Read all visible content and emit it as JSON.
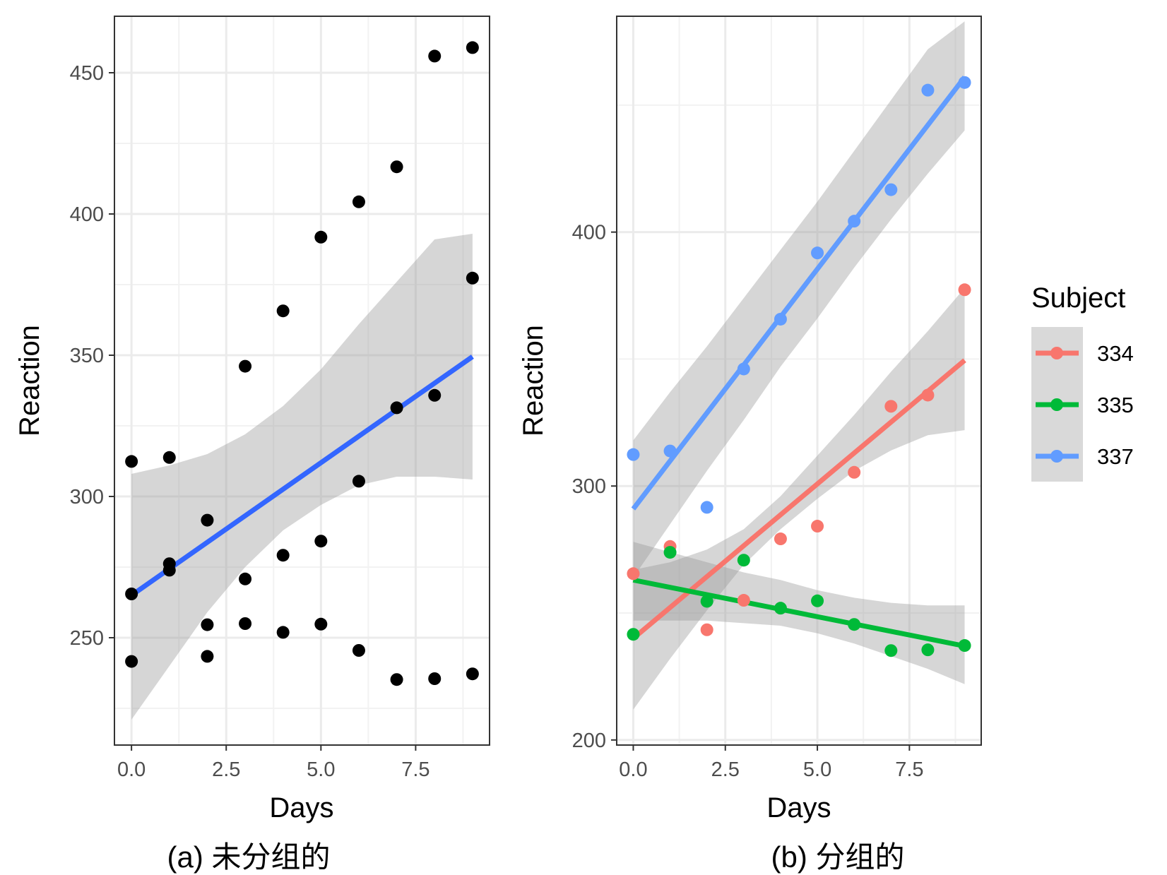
{
  "chart_data": [
    {
      "type": "scatter",
      "panel": "a",
      "caption": "(a) 未分组的",
      "xlabel": "Days",
      "ylabel": "Reaction",
      "xlim": [
        -0.45,
        9.45
      ],
      "ylim": [
        212,
        470
      ],
      "xticks": [
        0,
        2.5,
        5,
        7.5
      ],
      "xtick_labels": [
        "0.0",
        "2.5",
        "5.0",
        "7.5"
      ],
      "yticks": [
        250,
        300,
        350,
        400,
        450
      ],
      "ytick_labels": [
        "250",
        "300",
        "350",
        "400",
        "450"
      ],
      "grid": true,
      "points": [
        {
          "x": 0,
          "y": 312.4
        },
        {
          "x": 1,
          "y": 313.8
        },
        {
          "x": 2,
          "y": 291.6
        },
        {
          "x": 3,
          "y": 346.1
        },
        {
          "x": 4,
          "y": 365.7
        },
        {
          "x": 5,
          "y": 391.8
        },
        {
          "x": 6,
          "y": 404.3
        },
        {
          "x": 7,
          "y": 416.7
        },
        {
          "x": 8,
          "y": 455.9
        },
        {
          "x": 9,
          "y": 458.9
        },
        {
          "x": 0,
          "y": 265.5
        },
        {
          "x": 1,
          "y": 276.2
        },
        {
          "x": 2,
          "y": 254.6
        },
        {
          "x": 3,
          "y": 255.0
        },
        {
          "x": 4,
          "y": 251.9
        },
        {
          "x": 5,
          "y": 254.8
        },
        {
          "x": 6,
          "y": 245.5
        },
        {
          "x": 7,
          "y": 235.2
        },
        {
          "x": 8,
          "y": 235.5
        },
        {
          "x": 9,
          "y": 237.2
        },
        {
          "x": 0,
          "y": 241.6
        },
        {
          "x": 1,
          "y": 273.9
        },
        {
          "x": 2,
          "y": 243.4
        },
        {
          "x": 3,
          "y": 270.8
        },
        {
          "x": 4,
          "y": 279.2
        },
        {
          "x": 5,
          "y": 284.2
        },
        {
          "x": 6,
          "y": 305.4
        },
        {
          "x": 7,
          "y": 331.4
        },
        {
          "x": 8,
          "y": 335.8
        },
        {
          "x": 9,
          "y": 377.3
        }
      ],
      "fit": {
        "x": [
          0,
          9
        ],
        "y": [
          265.0,
          349.5
        ],
        "color": "#3366ff"
      },
      "ribbon": {
        "x": [
          0,
          1,
          2,
          3,
          4,
          5,
          6,
          7,
          8,
          9
        ],
        "lower": [
          221,
          240,
          259,
          275,
          288,
          297,
          304,
          307,
          307,
          306
        ],
        "upper": [
          308,
          311,
          315,
          322,
          332,
          345,
          361,
          376,
          391,
          393
        ]
      }
    },
    {
      "type": "scatter",
      "panel": "b",
      "caption": "(b) 分组的",
      "xlabel": "Days",
      "ylabel": "Reaction",
      "xlim": [
        -0.45,
        9.45
      ],
      "ylim": [
        198,
        485
      ],
      "xticks": [
        0,
        2.5,
        5,
        7.5
      ],
      "xtick_labels": [
        "0.0",
        "2.5",
        "5.0",
        "7.5"
      ],
      "yticks": [
        200,
        300,
        400
      ],
      "ytick_labels": [
        "200",
        "300",
        "400"
      ],
      "grid": true,
      "legend": {
        "title": "Subject",
        "position": "right"
      },
      "series": [
        {
          "name": "334",
          "color": "#f8766d",
          "x": [
            0,
            1,
            2,
            3,
            4,
            5,
            6,
            7,
            8,
            9
          ],
          "y": [
            265.5,
            276.2,
            243.4,
            255.0,
            279.2,
            284.2,
            305.4,
            331.4,
            335.8,
            377.3
          ],
          "fit": [
            240.0,
            349.5
          ],
          "ribbon_lower": [
            212,
            232,
            251,
            269,
            283,
            295,
            306,
            314,
            320,
            322
          ],
          "ribbon_upper": [
            267,
            270,
            275,
            283,
            296,
            312,
            328,
            345,
            361,
            378
          ]
        },
        {
          "name": "335",
          "color": "#00ba38",
          "x": [
            0,
            1,
            2,
            3,
            4,
            5,
            6,
            7,
            8,
            9
          ],
          "y": [
            241.6,
            273.9,
            254.6,
            270.8,
            251.9,
            254.8,
            245.5,
            235.2,
            235.5,
            237.2
          ],
          "fit": [
            263.0,
            237.0
          ],
          "ribbon_lower": [
            247,
            247,
            247,
            246,
            245,
            242,
            238,
            233,
            228,
            222
          ],
          "ribbon_upper": [
            278,
            274,
            270,
            266,
            263,
            259,
            256,
            254,
            253,
            253
          ]
        },
        {
          "name": "337",
          "color": "#619cff",
          "x": [
            0,
            1,
            2,
            3,
            4,
            5,
            6,
            7,
            8,
            9
          ],
          "y": [
            312.4,
            313.8,
            291.6,
            346.1,
            365.7,
            391.8,
            404.3,
            416.7,
            455.9,
            458.9
          ],
          "fit": [
            291.0,
            461.0
          ],
          "ribbon_lower": [
            264,
            285,
            306,
            326,
            347,
            366,
            386,
            405,
            423,
            440
          ],
          "ribbon_upper": [
            318,
            337,
            355,
            374,
            393,
            412,
            432,
            452,
            472,
            483
          ]
        }
      ]
    }
  ]
}
